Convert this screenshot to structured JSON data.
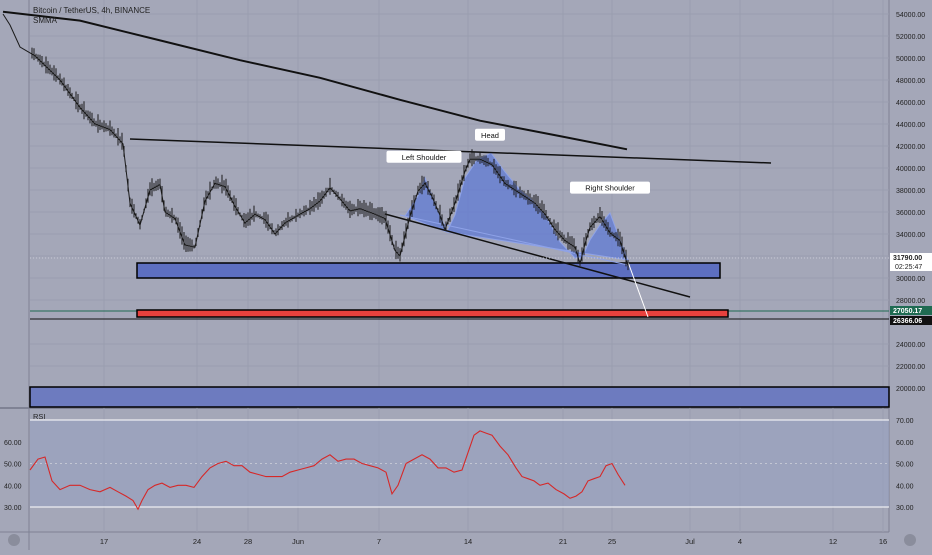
{
  "header": {
    "symbol": "Bitcoin / TetherUS, 4h, BINANCE",
    "indicator": "SMMA"
  },
  "rsi_label": "RSI",
  "chart_data": [
    {
      "type": "line",
      "title": "Bitcoin / TetherUS, 4h, BINANCE",
      "price_axis": {
        "ticks": [
          "54000.00",
          "52000.00",
          "50000.00",
          "48000.00",
          "46000.00",
          "44000.00",
          "42000.00",
          "40000.00",
          "38000.00",
          "36000.00",
          "34000.00",
          "30000.00",
          "28000.00",
          "24000.00",
          "22000.00",
          "20000.00"
        ],
        "ylim": [
          19000,
          55000
        ]
      },
      "time_axis": {
        "ticks": [
          "17",
          "24",
          "28",
          "Jun",
          "7",
          "14",
          "21",
          "25",
          "Jul",
          "4",
          "12",
          "16"
        ]
      },
      "series": [
        {
          "name": "SMMA",
          "points": [
            [
              3,
              54200
            ],
            [
              80,
              53400
            ],
            [
              160,
              51600
            ],
            [
              240,
              49800
            ],
            [
              320,
              48200
            ],
            [
              400,
              46200
            ],
            [
              480,
              44300
            ],
            [
              560,
              42900
            ],
            [
              627,
              41700
            ]
          ]
        }
      ],
      "price_path": [
        [
          3,
          54000
        ],
        [
          10,
          53000
        ],
        [
          20,
          51000
        ],
        [
          35,
          50200
        ],
        [
          60,
          48000
        ],
        [
          80,
          45500
        ],
        [
          95,
          44000
        ],
        [
          110,
          43500
        ],
        [
          123,
          42200
        ],
        [
          130,
          36800
        ],
        [
          140,
          34800
        ],
        [
          150,
          38000
        ],
        [
          160,
          38500
        ],
        [
          165,
          36000
        ],
        [
          175,
          35400
        ],
        [
          185,
          33000
        ],
        [
          195,
          32800
        ],
        [
          205,
          37000
        ],
        [
          215,
          38600
        ],
        [
          225,
          38300
        ],
        [
          235,
          36500
        ],
        [
          245,
          35000
        ],
        [
          255,
          35800
        ],
        [
          265,
          35300
        ],
        [
          275,
          34000
        ],
        [
          285,
          35000
        ],
        [
          300,
          35800
        ],
        [
          310,
          36300
        ],
        [
          320,
          37000
        ],
        [
          330,
          38200
        ],
        [
          340,
          37200
        ],
        [
          350,
          36100
        ],
        [
          360,
          36300
        ],
        [
          375,
          35800
        ],
        [
          385,
          35400
        ],
        [
          395,
          32500
        ],
        [
          400,
          32000
        ],
        [
          410,
          35600
        ],
        [
          418,
          37900
        ],
        [
          425,
          38600
        ],
        [
          432,
          37400
        ],
        [
          440,
          35700
        ],
        [
          445,
          34400
        ],
        [
          455,
          36800
        ],
        [
          465,
          39700
        ],
        [
          470,
          40800
        ],
        [
          480,
          40800
        ],
        [
          492,
          40300
        ],
        [
          505,
          38600
        ],
        [
          515,
          38000
        ],
        [
          525,
          37400
        ],
        [
          535,
          36800
        ],
        [
          545,
          35800
        ],
        [
          555,
          34400
        ],
        [
          565,
          33400
        ],
        [
          575,
          32800
        ],
        [
          580,
          31300
        ],
        [
          585,
          33100
        ],
        [
          590,
          34600
        ],
        [
          600,
          35600
        ],
        [
          610,
          34100
        ],
        [
          620,
          33400
        ],
        [
          628,
          31100
        ]
      ],
      "annotations": [
        {
          "label": "Head",
          "price": 41200
        },
        {
          "label": "Left Shoulder",
          "price": 39200
        },
        {
          "label": "Right Shoulder",
          "price": 36400
        }
      ],
      "zones": [
        {
          "name": "support-zone",
          "low": 30200,
          "high": 31600
        },
        {
          "name": "target-zone",
          "low": 26600,
          "high": 27100
        },
        {
          "name": "lower-zone",
          "low": 18000,
          "high": 20000
        }
      ],
      "levels": [
        {
          "label": "31790.00",
          "sub": "02:25:47",
          "color": "#ffffff"
        },
        {
          "label": "27050.17",
          "color": "#1f6b52"
        },
        {
          "label": "26366.06",
          "color": "#111111"
        }
      ]
    },
    {
      "type": "line",
      "title": "RSI",
      "ylim": [
        25,
        75
      ],
      "ticks": [
        "70.00",
        "60.00",
        "50.00",
        "40.00",
        "30.00"
      ],
      "left_ticks": [
        "60.00",
        "50.00",
        "40.00",
        "30.00"
      ],
      "bands": [
        30,
        70
      ],
      "series": [
        {
          "points": [
            [
              30,
              47
            ],
            [
              38,
              52
            ],
            [
              45,
              53
            ],
            [
              52,
              42
            ],
            [
              60,
              38
            ],
            [
              70,
              40
            ],
            [
              80,
              40
            ],
            [
              90,
              38
            ],
            [
              100,
              37
            ],
            [
              110,
              39
            ],
            [
              118,
              37
            ],
            [
              126,
              35
            ],
            [
              133,
              33
            ],
            [
              138,
              29
            ],
            [
              142,
              33
            ],
            [
              148,
              38
            ],
            [
              155,
              40
            ],
            [
              162,
              41
            ],
            [
              170,
              39
            ],
            [
              178,
              40
            ],
            [
              186,
              40
            ],
            [
              194,
              39
            ],
            [
              202,
              44
            ],
            [
              210,
              48
            ],
            [
              218,
              50
            ],
            [
              226,
              51
            ],
            [
              234,
              49
            ],
            [
              242,
              49
            ],
            [
              250,
              46
            ],
            [
              258,
              45
            ],
            [
              266,
              44
            ],
            [
              274,
              44
            ],
            [
              282,
              44
            ],
            [
              290,
              46
            ],
            [
              298,
              47
            ],
            [
              306,
              48
            ],
            [
              314,
              49
            ],
            [
              322,
              52
            ],
            [
              330,
              54
            ],
            [
              338,
              51
            ],
            [
              346,
              52
            ],
            [
              354,
              52
            ],
            [
              362,
              50
            ],
            [
              370,
              49
            ],
            [
              378,
              48
            ],
            [
              386,
              46
            ],
            [
              392,
              36
            ],
            [
              398,
              40
            ],
            [
              406,
              50
            ],
            [
              414,
              52
            ],
            [
              422,
              54
            ],
            [
              430,
              52
            ],
            [
              438,
              48
            ],
            [
              446,
              48
            ],
            [
              454,
              46
            ],
            [
              462,
              47
            ],
            [
              468,
              55
            ],
            [
              474,
              63
            ],
            [
              480,
              65
            ],
            [
              486,
              64
            ],
            [
              492,
              63
            ],
            [
              500,
              58
            ],
            [
              508,
              54
            ],
            [
              516,
              48
            ],
            [
              522,
              44
            ],
            [
              528,
              43
            ],
            [
              534,
              42
            ],
            [
              540,
              40
            ],
            [
              548,
              41
            ],
            [
              556,
              38
            ],
            [
              564,
              36
            ],
            [
              570,
              34
            ],
            [
              576,
              35
            ],
            [
              582,
              37
            ],
            [
              588,
              42
            ],
            [
              594,
              43
            ],
            [
              600,
              44
            ],
            [
              606,
              49
            ],
            [
              612,
              50
            ],
            [
              618,
              45
            ],
            [
              625,
              40
            ]
          ]
        }
      ]
    }
  ]
}
